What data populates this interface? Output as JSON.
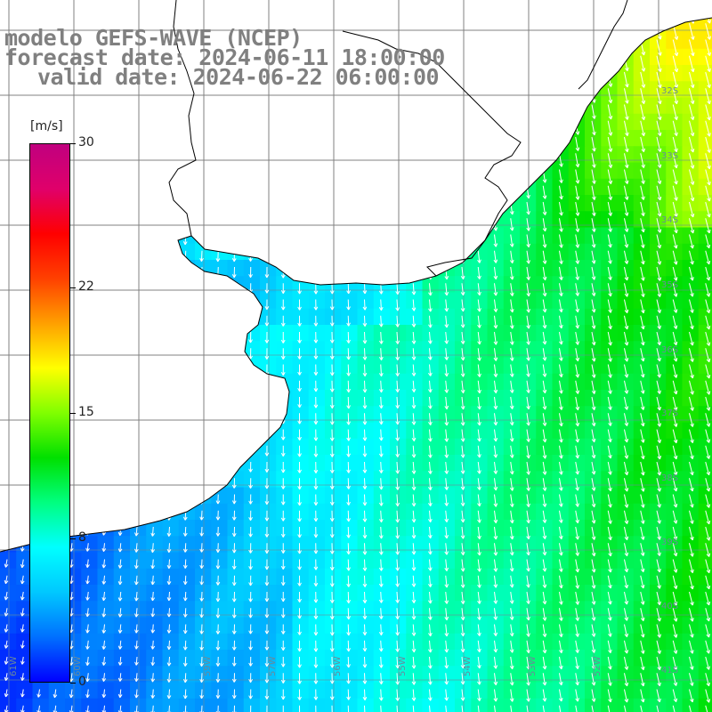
{
  "title": {
    "line1": "modelo GEFS-WAVE (NCEP)",
    "line2": "forecast date: 2024-06-11 18:00:00",
    "line3": "valid date: 2024-06-22 06:00:00"
  },
  "colorbar": {
    "units": "[m/s]",
    "ticks": [
      {
        "value": 30,
        "label": "30"
      },
      {
        "value": 22,
        "label": "22"
      },
      {
        "value": 15,
        "label": "15"
      },
      {
        "value": 8,
        "label": "8"
      },
      {
        "value": 0,
        "label": "0"
      }
    ],
    "range": [
      0,
      30
    ],
    "colors": [
      "#0000ff",
      "#0070ff",
      "#00c8ff",
      "#00ffff",
      "#00ff80",
      "#00e000",
      "#80ff00",
      "#ffff00",
      "#ffa000",
      "#ff4000",
      "#ff0000",
      "#e0006a",
      "#c0007f"
    ]
  },
  "map": {
    "lon_range": [
      -62,
      -51
    ],
    "lat_range": [
      -41.5,
      -30
    ],
    "lat_labels": [
      "32S",
      "33S",
      "34S",
      "35S",
      "36S",
      "37S",
      "38S",
      "39S",
      "40S",
      "41S"
    ],
    "lon_labels": [
      "61W",
      "60W",
      "59W",
      "57W",
      "56W",
      "55W",
      "54W",
      "53W",
      "52W"
    ],
    "variable": "wind speed",
    "wind_direction": "from north-northwest"
  }
}
